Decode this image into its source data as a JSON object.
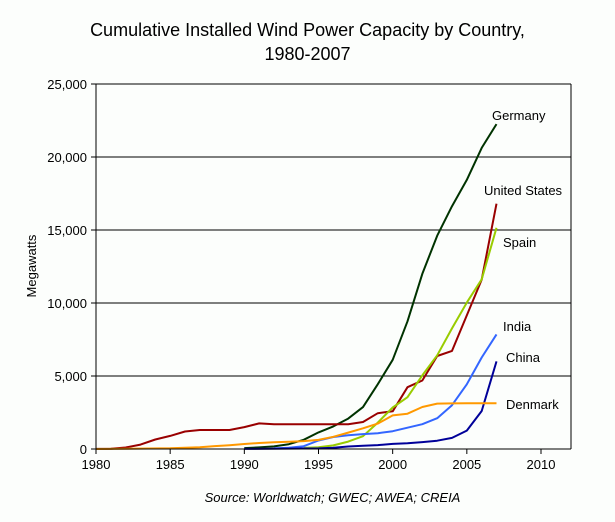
{
  "chart_data": {
    "type": "line",
    "title": [
      "Cumulative Installed Wind Power Capacity by Country,",
      "1980-2007"
    ],
    "xlabel": "",
    "ylabel": "Megawatts",
    "source": "Source: Worldwatch; GWEC; AWEA; CREIA",
    "xlim": [
      1980,
      2012
    ],
    "ylim": [
      0,
      25000
    ],
    "x_ticks": [
      1980,
      1985,
      1990,
      1995,
      2000,
      2005,
      2010
    ],
    "y_ticks": [
      0,
      5000,
      10000,
      15000,
      20000,
      25000
    ],
    "y_tick_labels": [
      "0",
      "5,000",
      "10,000",
      "15,000",
      "20,000",
      "25,000"
    ],
    "grid": "horizontal major gridlines",
    "legend": "inline labels at line ends",
    "series": [
      {
        "name": "Germany",
        "color": "#003300",
        "x": [
          1990,
          1991,
          1992,
          1993,
          1994,
          1995,
          1996,
          1997,
          1998,
          1999,
          2000,
          2001,
          2002,
          2003,
          2004,
          2005,
          2006,
          2007
        ],
        "y": [
          60,
          110,
          180,
          330,
          630,
          1140,
          1550,
          2080,
          2870,
          4440,
          6110,
          8750,
          11990,
          14610,
          16630,
          18430,
          20620,
          22250
        ]
      },
      {
        "name": "United States",
        "color": "#990000",
        "x": [
          1980,
          1981,
          1982,
          1983,
          1984,
          1985,
          1986,
          1987,
          1988,
          1989,
          1990,
          1991,
          1992,
          1993,
          1994,
          1995,
          1996,
          1997,
          1998,
          1999,
          2000,
          2001,
          2002,
          2003,
          2004,
          2005,
          2006,
          2007
        ],
        "y": [
          10,
          20,
          100,
          300,
          650,
          900,
          1200,
          1300,
          1300,
          1300,
          1500,
          1750,
          1700,
          1700,
          1700,
          1700,
          1700,
          1700,
          1850,
          2450,
          2580,
          4230,
          4690,
          6370,
          6720,
          9150,
          11600,
          16800
        ]
      },
      {
        "name": "Spain",
        "color": "#99cc00",
        "x": [
          1994,
          1995,
          1996,
          1997,
          1998,
          1999,
          2000,
          2001,
          2002,
          2003,
          2004,
          2005,
          2006,
          2007
        ],
        "y": [
          75,
          115,
          250,
          510,
          880,
          1810,
          2840,
          3550,
          5040,
          6420,
          8260,
          10030,
          11620,
          15150
        ]
      },
      {
        "name": "India",
        "color": "#3366ff",
        "x": [
          1992,
          1993,
          1994,
          1995,
          1996,
          1997,
          1998,
          1999,
          2000,
          2001,
          2002,
          2003,
          2004,
          2005,
          2006,
          2007
        ],
        "y": [
          40,
          80,
          190,
          580,
          820,
          940,
          1020,
          1080,
          1220,
          1460,
          1700,
          2110,
          3000,
          4430,
          6270,
          7850
        ]
      },
      {
        "name": "China",
        "color": "#000099",
        "x": [
          1990,
          1995,
          1996,
          1997,
          1998,
          1999,
          2000,
          2001,
          2002,
          2003,
          2004,
          2005,
          2006,
          2007
        ],
        "y": [
          4,
          40,
          80,
          170,
          220,
          270,
          350,
          400,
          470,
          570,
          760,
          1260,
          2600,
          6000
        ]
      },
      {
        "name": "Denmark",
        "color": "#ff9900",
        "x": [
          1980,
          1985,
          1986,
          1987,
          1988,
          1989,
          1990,
          1991,
          1992,
          1993,
          1994,
          1995,
          1996,
          1997,
          1998,
          1999,
          2000,
          2001,
          2002,
          2003,
          2004,
          2005,
          2006,
          2007
        ],
        "y": [
          3,
          50,
          80,
          115,
          200,
          260,
          340,
          410,
          460,
          490,
          540,
          620,
          835,
          1120,
          1420,
          1740,
          2300,
          2420,
          2880,
          3110,
          3120,
          3130,
          3140,
          3130
        ]
      }
    ]
  }
}
